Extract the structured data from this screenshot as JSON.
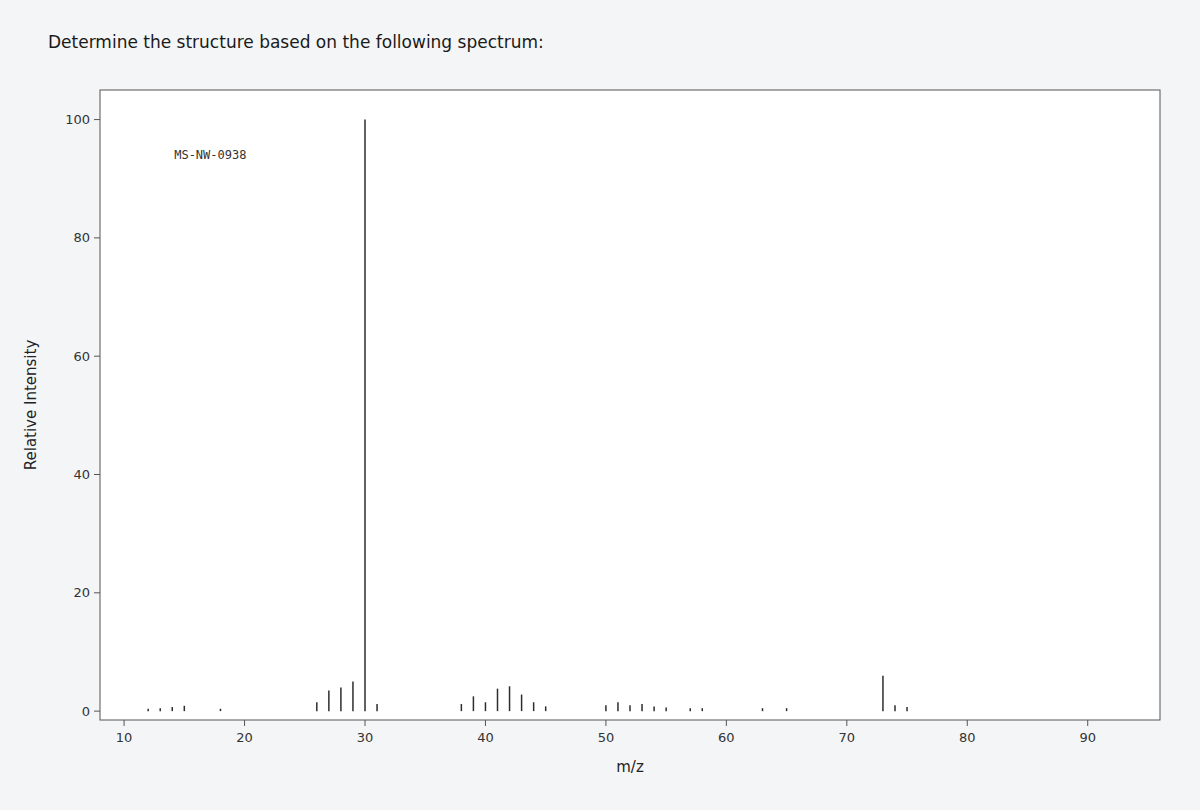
{
  "chart_data": {
    "type": "stem",
    "title": "Determine the structure based on the following spectrum:",
    "x_label": "m/z",
    "y_label": "Relative Intensity",
    "annotations": [
      "MS-NW-0938"
    ],
    "color": "#2d2d2d",
    "x": [
      12,
      13,
      14,
      15,
      18,
      26,
      27,
      28,
      29,
      30,
      31,
      38,
      39,
      40,
      41,
      42,
      43,
      44,
      45,
      50,
      51,
      52,
      53,
      54,
      55,
      57,
      58,
      63,
      65,
      73,
      74,
      75
    ],
    "values": [
      0.4,
      0.5,
      0.7,
      0.9,
      0.4,
      1.5,
      3.5,
      4.0,
      5.0,
      100.0,
      1.2,
      1.2,
      2.5,
      1.5,
      3.8,
      4.2,
      2.8,
      1.5,
      0.8,
      1.0,
      1.5,
      1.0,
      1.2,
      0.8,
      0.6,
      0.5,
      0.5,
      0.5,
      0.5,
      6.0,
      1.0,
      0.7
    ],
    "xlim": [
      8,
      96
    ],
    "ylim": [
      -1.5,
      105
    ],
    "xticks": [
      10,
      20,
      30,
      40,
      50,
      60,
      70,
      80,
      90
    ],
    "yticks": [
      0,
      20,
      40,
      60,
      80,
      100
    ],
    "grid": false
  }
}
